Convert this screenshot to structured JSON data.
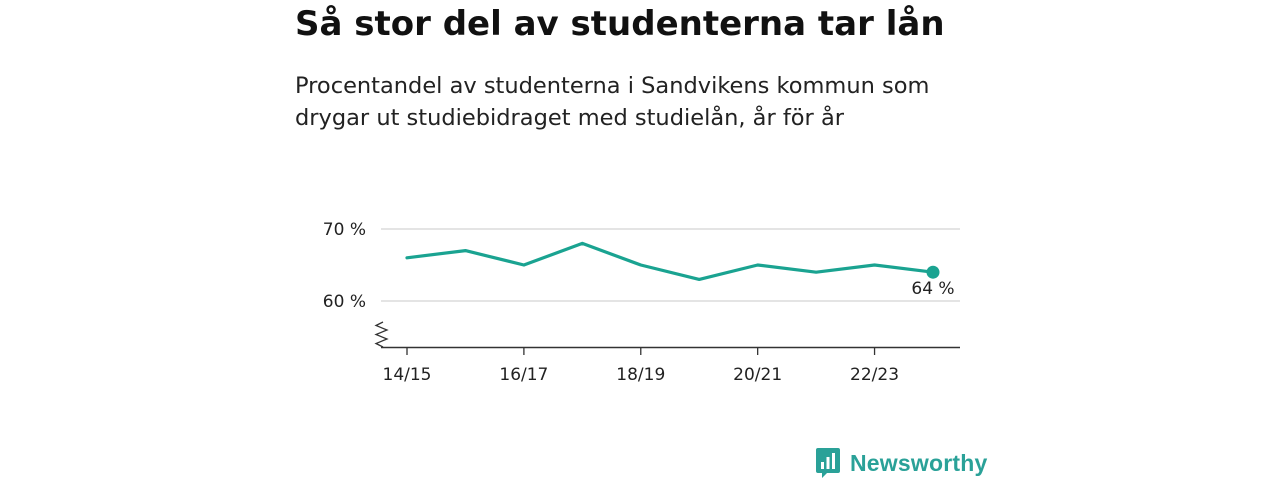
{
  "title": "Så stor del av studenterna tar lån",
  "subtitle": "Procentandel av studenterna i Sandvikens kommun som drygar ut studiebidraget med studielån, år för år",
  "brand": {
    "name": "Newsworthy",
    "color": "#2aa198"
  },
  "chart_data": {
    "type": "line",
    "title": "Så stor del av studenterna tar lån",
    "subtitle": "Procentandel av studenterna i Sandvikens kommun som drygar ut studiebidraget med studielån, år för år",
    "x": [
      "14/15",
      "15/16",
      "16/17",
      "17/18",
      "18/19",
      "19/20",
      "20/21",
      "21/22",
      "22/23",
      "23/24"
    ],
    "x_tick_labels": [
      "14/15",
      "16/17",
      "18/19",
      "20/21",
      "22/23"
    ],
    "series": [
      {
        "values": [
          66,
          67,
          65,
          68,
          65,
          63,
          65,
          64,
          65,
          64
        ],
        "color": "#1aa391"
      }
    ],
    "y_ticks": [
      {
        "value": 60,
        "label": "60 %"
      },
      {
        "value": 70,
        "label": "70 %"
      }
    ],
    "end_label": "64 %",
    "ylim": [
      53.5,
      70
    ],
    "y_axis_break": true,
    "grid": true,
    "xlabel": "",
    "ylabel": ""
  }
}
